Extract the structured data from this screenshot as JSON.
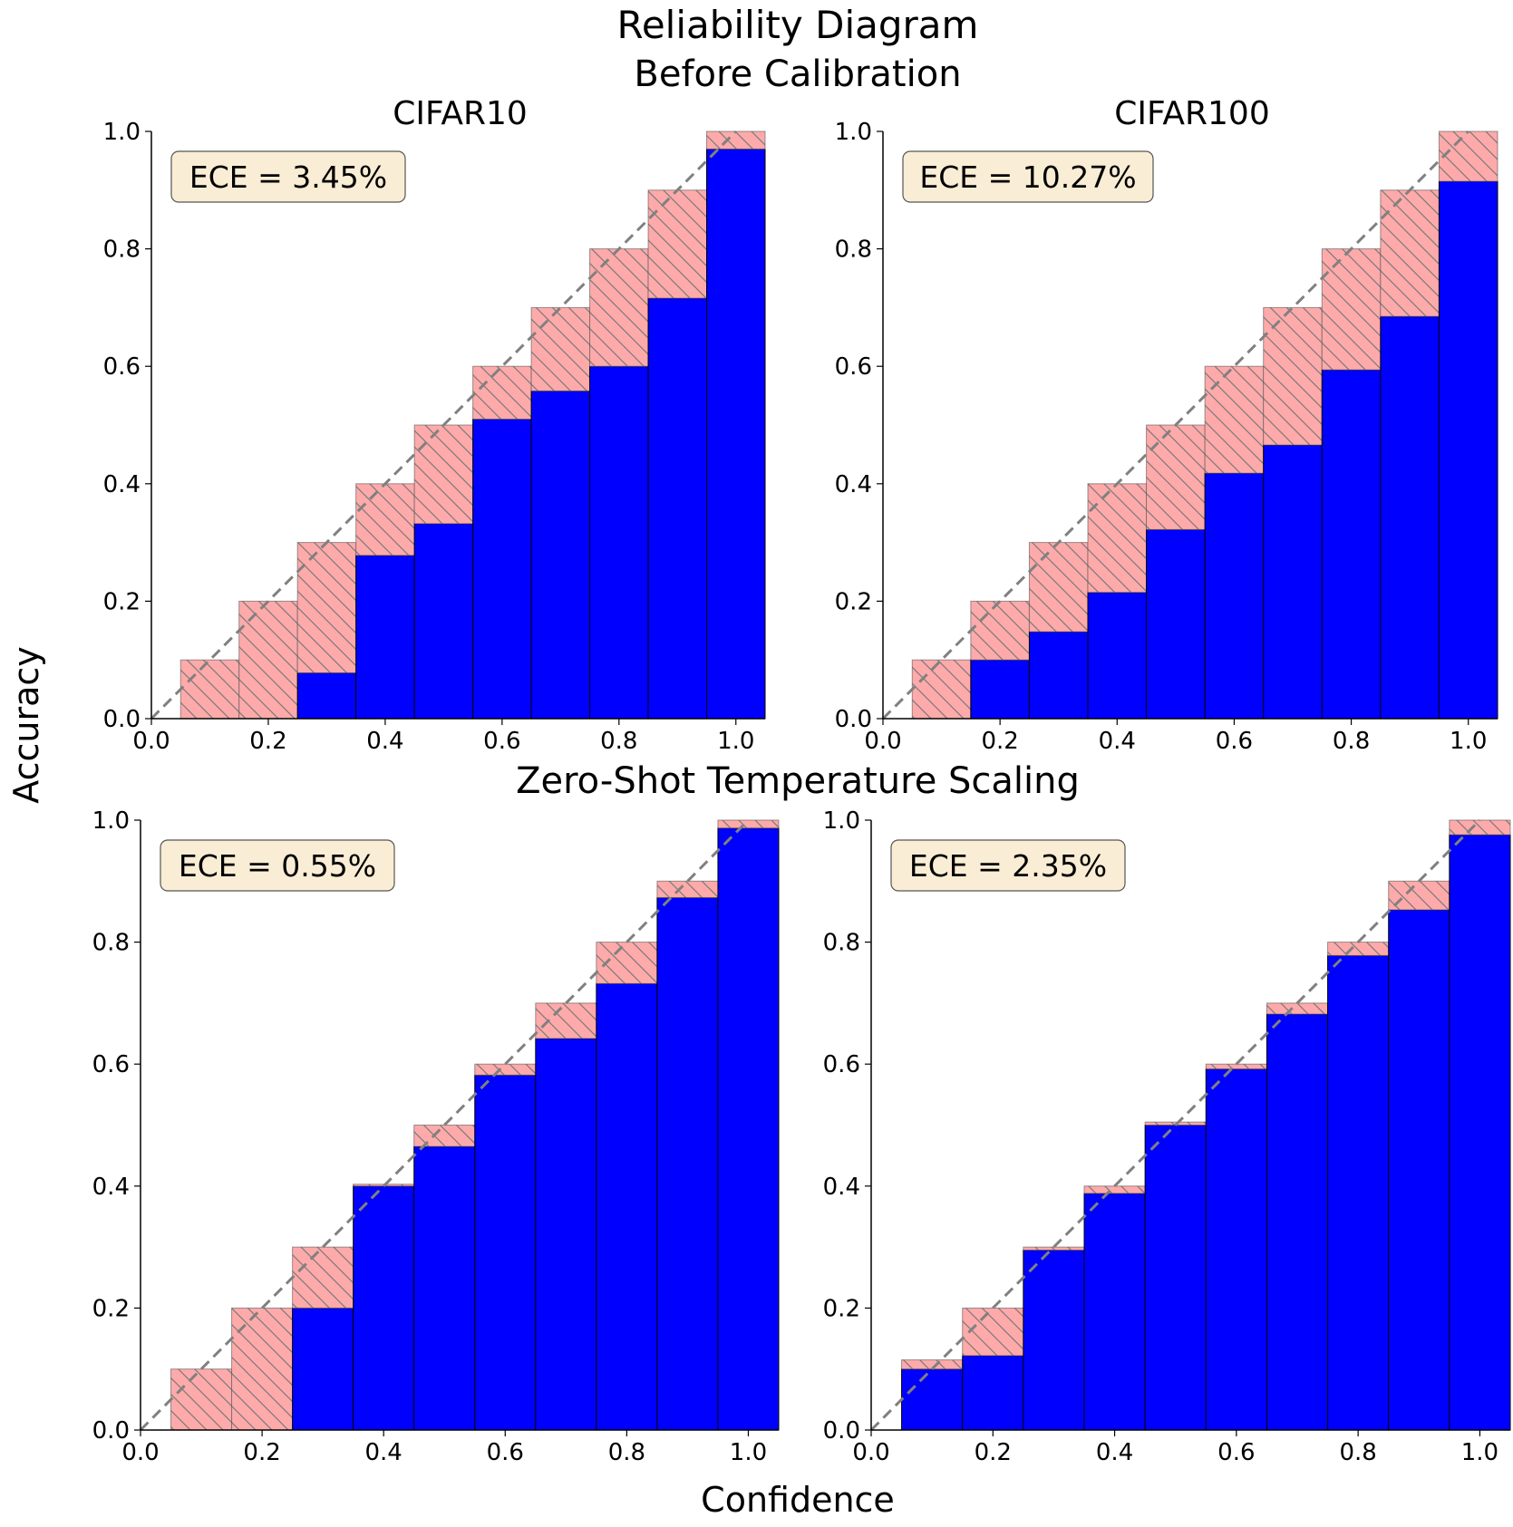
{
  "figure": {
    "title": "Reliability Diagram",
    "row_titles": [
      "Before Calibration",
      "Zero-Shot Temperature Scaling"
    ],
    "xlabel": "Confidence",
    "ylabel": "Accuracy"
  },
  "colors": {
    "output_bar": "#0000ff",
    "gap_fill": "#ffaaaa",
    "gap_hatch": "#7a7a7a",
    "diagonal": "#808080",
    "ece_box_fill": "#f5deb3"
  },
  "chart_data": [
    {
      "type": "bar",
      "column_title": "CIFAR10",
      "row": "Before Calibration",
      "ece_label": "ECE = 3.45%",
      "bin_centers": [
        0.1,
        0.2,
        0.3,
        0.4,
        0.5,
        0.6,
        0.7,
        0.8,
        0.9,
        1.0
      ],
      "bin_width": 0.1,
      "series": [
        {
          "name": "Outputs",
          "values": [
            0.0,
            0.0,
            0.078,
            0.278,
            0.332,
            0.51,
            0.558,
            0.6,
            0.716,
            0.97
          ]
        },
        {
          "name": "Gap",
          "values": [
            0.1,
            0.2,
            0.3,
            0.4,
            0.5,
            0.6,
            0.7,
            0.8,
            0.9,
            1.0
          ]
        }
      ],
      "xlim": [
        0,
        1.05
      ],
      "ylim": [
        0,
        1.0
      ],
      "xticks": [
        "0.0",
        "0.2",
        "0.4",
        "0.6",
        "0.8",
        "1.0"
      ],
      "yticks": [
        "0.0",
        "0.2",
        "0.4",
        "0.6",
        "0.8",
        "1.0"
      ],
      "grid": false
    },
    {
      "type": "bar",
      "column_title": "CIFAR100",
      "row": "Before Calibration",
      "ece_label": "ECE = 10.27%",
      "bin_centers": [
        0.1,
        0.2,
        0.3,
        0.4,
        0.5,
        0.6,
        0.7,
        0.8,
        0.9,
        1.0
      ],
      "bin_width": 0.1,
      "series": [
        {
          "name": "Outputs",
          "values": [
            0.0,
            0.1,
            0.148,
            0.215,
            0.322,
            0.418,
            0.466,
            0.594,
            0.685,
            0.915
          ]
        },
        {
          "name": "Gap",
          "values": [
            0.1,
            0.2,
            0.3,
            0.4,
            0.5,
            0.6,
            0.7,
            0.8,
            0.9,
            1.0
          ]
        }
      ],
      "xlim": [
        0,
        1.05
      ],
      "ylim": [
        0,
        1.0
      ],
      "xticks": [
        "0.0",
        "0.2",
        "0.4",
        "0.6",
        "0.8",
        "1.0"
      ],
      "yticks": [
        "0.0",
        "0.2",
        "0.4",
        "0.6",
        "0.8",
        "1.0"
      ],
      "grid": false
    },
    {
      "type": "bar",
      "column_title": "",
      "row": "Zero-Shot Temperature Scaling",
      "ece_label": "ECE = 0.55%",
      "bin_centers": [
        0.1,
        0.2,
        0.3,
        0.4,
        0.5,
        0.6,
        0.7,
        0.8,
        0.9,
        1.0
      ],
      "bin_width": 0.1,
      "series": [
        {
          "name": "Outputs",
          "values": [
            0.0,
            0.0,
            0.2,
            0.4,
            0.465,
            0.582,
            0.642,
            0.732,
            0.873,
            0.987
          ]
        },
        {
          "name": "Gap",
          "values": [
            0.1,
            0.2,
            0.3,
            0.403,
            0.5,
            0.6,
            0.7,
            0.8,
            0.9,
            1.0
          ]
        }
      ],
      "xlim": [
        0,
        1.05
      ],
      "ylim": [
        0,
        1.0
      ],
      "xticks": [
        "0.0",
        "0.2",
        "0.4",
        "0.6",
        "0.8",
        "1.0"
      ],
      "yticks": [
        "0.0",
        "0.2",
        "0.4",
        "0.6",
        "0.8",
        "1.0"
      ],
      "grid": false
    },
    {
      "type": "bar",
      "column_title": "",
      "row": "Zero-Shot Temperature Scaling",
      "ece_label": "ECE = 2.35%",
      "bin_centers": [
        0.1,
        0.2,
        0.3,
        0.4,
        0.5,
        0.6,
        0.7,
        0.8,
        0.9,
        1.0
      ],
      "bin_width": 0.1,
      "series": [
        {
          "name": "Outputs",
          "values": [
            0.1,
            0.122,
            0.295,
            0.388,
            0.5,
            0.592,
            0.682,
            0.778,
            0.853,
            0.976
          ]
        },
        {
          "name": "Gap",
          "values": [
            0.115,
            0.2,
            0.3,
            0.4,
            0.505,
            0.6,
            0.7,
            0.8,
            0.9,
            1.0
          ]
        }
      ],
      "xlim": [
        0,
        1.05
      ],
      "ylim": [
        0,
        1.0
      ],
      "xticks": [
        "0.0",
        "0.2",
        "0.4",
        "0.6",
        "0.8",
        "1.0"
      ],
      "yticks": [
        "0.0",
        "0.2",
        "0.4",
        "0.6",
        "0.8",
        "1.0"
      ],
      "grid": false
    }
  ]
}
